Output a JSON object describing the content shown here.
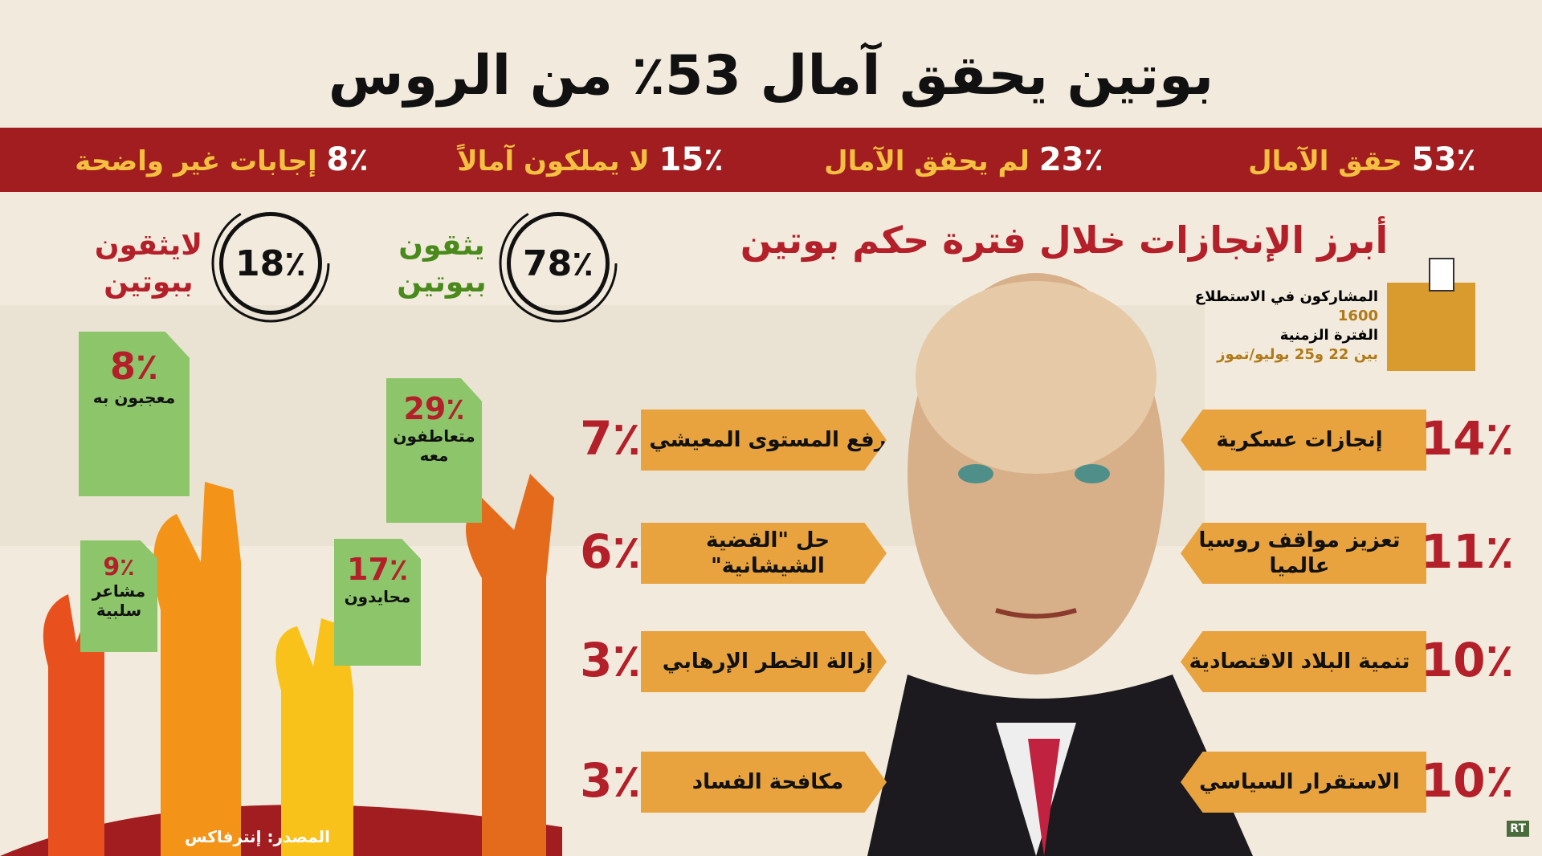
{
  "title": "بوتين يحقق آمال 53٪ من الروس",
  "banner": [
    {
      "value": "53٪",
      "label": "حقق الآمال"
    },
    {
      "value": "23٪",
      "label": "لم يحقق الآمال"
    },
    {
      "value": "15٪",
      "label": "لا يملكون آمالاً"
    },
    {
      "value": "8٪",
      "label": "إجابات غير واضحة"
    }
  ],
  "trust": [
    {
      "value": "78٪",
      "label": "يثقون ببوتين"
    },
    {
      "value": "18٪",
      "label": "لايثقون ببوتين"
    }
  ],
  "hands": [
    {
      "value": "8٪",
      "label": "معجبون به"
    },
    {
      "value": "29٪",
      "label": "متعاطفون معه"
    },
    {
      "value": "9٪",
      "label": "مشاعر سلبية"
    },
    {
      "value": "17٪",
      "label": "محايدون"
    }
  ],
  "achievements": {
    "title": "أبرز الإنجازات خلال فترة حكم بوتين",
    "right": [
      {
        "value": "14٪",
        "label": "إنجازات عسكرية"
      },
      {
        "value": "11٪",
        "label": "تعزيز مواقف روسيا عالميا"
      },
      {
        "value": "10٪",
        "label": "تنمية البلاد الاقتصادية"
      },
      {
        "value": "10٪",
        "label": "الاستقرار السياسي"
      }
    ],
    "left": [
      {
        "value": "7٪",
        "label": "رفع المستوى المعيشي"
      },
      {
        "value": "6٪",
        "label": "حل \"القضية الشيشانية\""
      },
      {
        "value": "3٪",
        "label": "إزالة الخطر الإرهابي"
      },
      {
        "value": "3٪",
        "label": "مكافحة الفساد"
      }
    ]
  },
  "survey": {
    "participants_label": "المشاركون في الاستطلاع",
    "participants": "1600",
    "period_label": "الفترة الزمنية",
    "period": "بين 22 و25 يوليو/تموز"
  },
  "source": "المصدر: إنترفاكس",
  "logo": "RT"
}
